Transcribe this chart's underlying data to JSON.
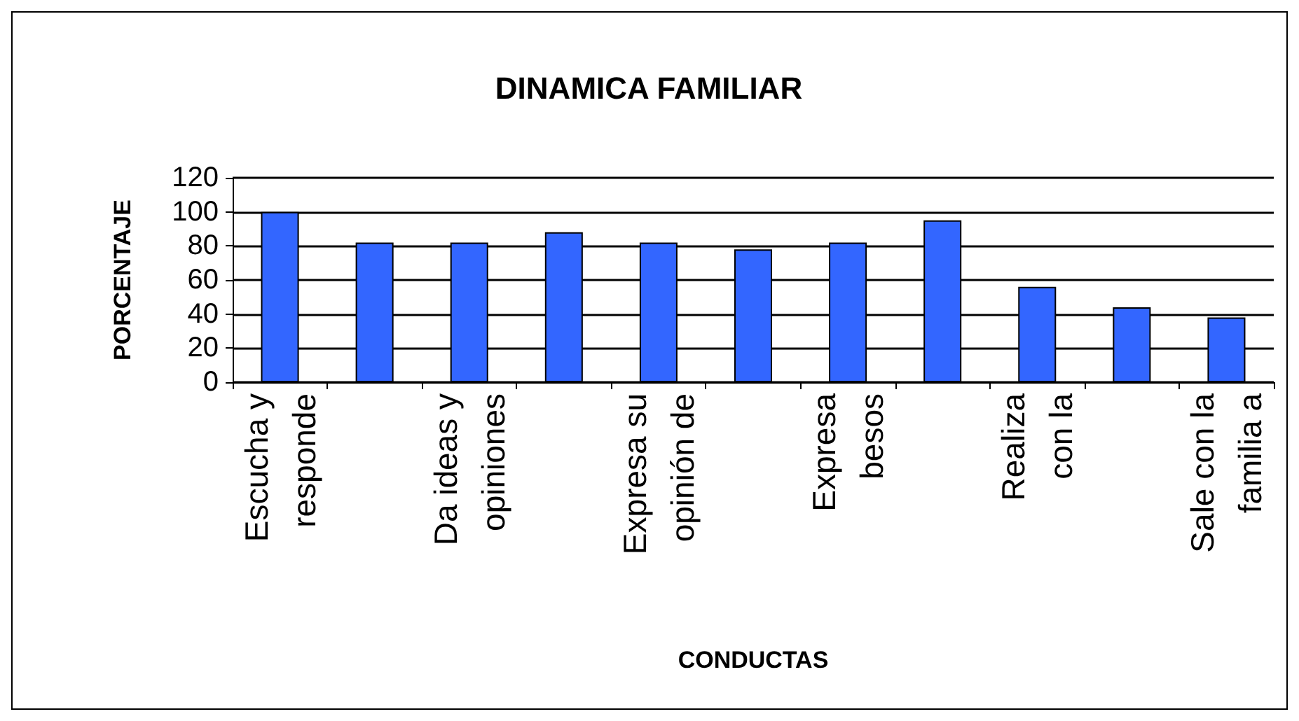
{
  "chart_data": {
    "type": "bar",
    "title": "DINAMICA FAMILIAR",
    "xlabel": "CONDUCTAS",
    "ylabel": "PORCENTAJE",
    "categories": [
      "Escucha y\nresponde",
      null,
      "Da ideas y\nopiniones",
      null,
      "Expresa su\nopinión de",
      null,
      "Expresa\nbesos",
      null,
      "Realiza\ncon la",
      null,
      "Sale con la\nfamilia a"
    ],
    "values": [
      100,
      82,
      82,
      88,
      82,
      78,
      82,
      95,
      56,
      44,
      38
    ],
    "color": "#3366ff",
    "ylim": [
      0,
      120
    ],
    "yticks": [
      0,
      20,
      40,
      60,
      80,
      100,
      120
    ],
    "grid": "y"
  }
}
